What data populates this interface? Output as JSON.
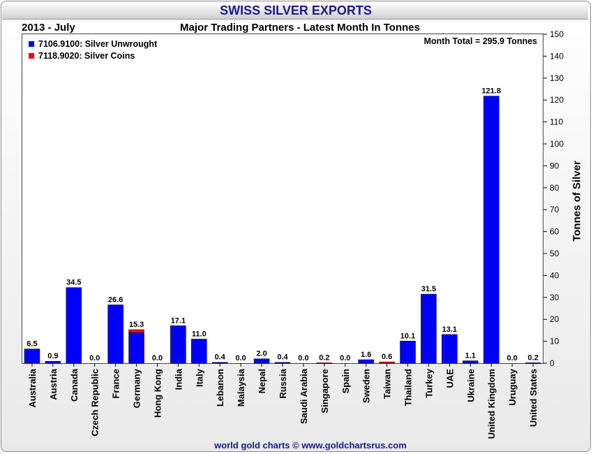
{
  "header": {
    "title": "SWISS SILVER EXPORTS",
    "period": "2013 - July",
    "subtitle": "Major Trading Partners - Latest Month In Tonnes",
    "month_total": "Month Total = 295.9 Tonnes"
  },
  "footer": {
    "credit": "world gold charts © www.goldchartsrus.com"
  },
  "colors": {
    "unwrought": "#0000ff",
    "coins": "#ff0000",
    "title": "#1a1a8c"
  },
  "chart_data": {
    "type": "bar",
    "stacked": true,
    "title": "SWISS SILVER EXPORTS",
    "subtitle": "Major Trading Partners - Latest Month In Tonnes",
    "xlabel": "",
    "ylabel": "Tonnes of Silver",
    "y_axis_side": "right",
    "ylim": [
      0,
      150
    ],
    "yticks": [
      0,
      10,
      20,
      30,
      40,
      50,
      60,
      70,
      80,
      90,
      100,
      110,
      120,
      130,
      140,
      150
    ],
    "legend_position": "top-left",
    "categories": [
      "Australia",
      "Austria",
      "Canada",
      "Czech Republic",
      "France",
      "Germany",
      "Hong Kong",
      "India",
      "Italy",
      "Lebanon",
      "Malaysia",
      "Nepal",
      "Russia",
      "Saudi Arabia",
      "Singapore",
      "Spain",
      "Sweden",
      "Taiwan",
      "Thailand",
      "Turkey",
      "UAE",
      "Ukraine",
      "United Kingdom",
      "Uruguay",
      "United States"
    ],
    "series": [
      {
        "name": "7106.9100: Silver Unwrought",
        "color": "#0000ff",
        "values": [
          6.5,
          0.9,
          34.5,
          0.0,
          26.6,
          14.0,
          0.0,
          17.1,
          11.0,
          0.4,
          0.0,
          2.0,
          0.4,
          0.0,
          0.0,
          0.0,
          1.6,
          0.0,
          10.1,
          31.5,
          13.1,
          1.1,
          121.8,
          0.0,
          0.2
        ]
      },
      {
        "name": "7118.9020: Silver Coins",
        "color": "#ff0000",
        "values": [
          0.0,
          0.0,
          0.0,
          0.0,
          0.0,
          1.3,
          0.0,
          0.0,
          0.0,
          0.0,
          0.0,
          0.0,
          0.0,
          0.0,
          0.2,
          0.0,
          0.0,
          0.6,
          0.0,
          0.0,
          0.0,
          0.0,
          0.0,
          0.0,
          0.0
        ]
      }
    ],
    "data_labels": [
      "6.5",
      "0.9",
      "34.5",
      "0.0",
      "26.6",
      "15.3",
      "0.0",
      "17.1",
      "11.0",
      "0.4",
      "0.0",
      "2.0",
      "0.4",
      "0.0",
      "0.2",
      "0.0",
      "1.6",
      "0.6",
      "10.1",
      "31.5",
      "13.1",
      "1.1",
      "121.8",
      "0.0",
      "0.2"
    ]
  }
}
